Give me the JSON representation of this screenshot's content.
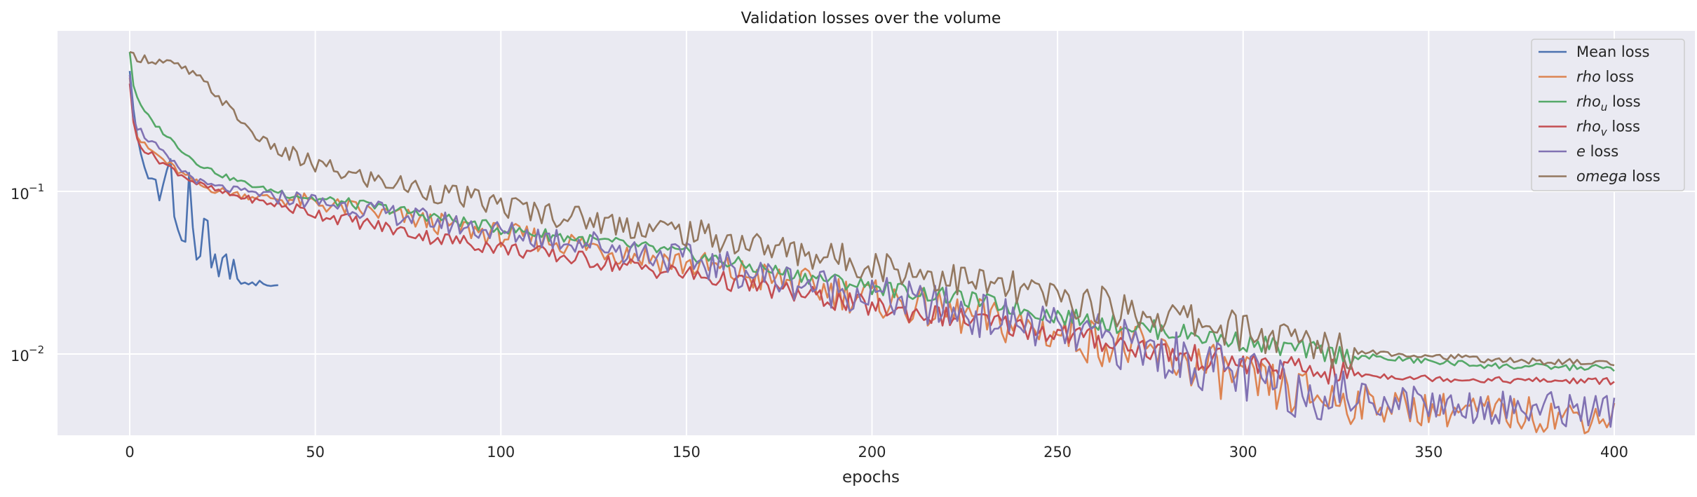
{
  "chart_data": {
    "type": "line",
    "title": "Validation losses over the volume",
    "xlabel": "epochs",
    "ylabel": "",
    "xlim": [
      -19,
      419
    ],
    "yscale": "log",
    "ylim": [
      0.0031,
      0.82
    ],
    "xticks": [
      0,
      50,
      100,
      150,
      200,
      250,
      300,
      350,
      400
    ],
    "xtick_labels": [
      "0",
      "50",
      "100",
      "150",
      "200",
      "250",
      "300",
      "350",
      "400"
    ],
    "yticks": [
      0.1,
      0.01
    ],
    "grid": true,
    "legend_position": "top-right",
    "background": "#eaeaf2",
    "series": [
      {
        "name": "Mean loss",
        "legend": {
          "main": "Mean loss",
          "sub": "",
          "suffix": "",
          "italic": false
        },
        "color": "#4c72b0",
        "x": [
          0,
          1,
          2,
          3,
          4,
          5,
          6,
          7,
          8,
          9,
          10,
          11,
          12,
          13,
          14,
          15,
          16,
          17,
          18,
          19,
          20,
          21,
          22,
          23,
          24,
          25,
          26,
          27,
          28,
          29,
          30,
          31,
          32,
          33,
          34,
          35,
          36,
          37,
          38,
          39,
          40
        ],
        "y": [
          0.55,
          0.32,
          0.22,
          0.17,
          0.14,
          0.12,
          0.12,
          0.118,
          0.088,
          0.11,
          0.135,
          0.158,
          0.07,
          0.058,
          0.05,
          0.049,
          0.13,
          0.06,
          0.038,
          0.04,
          0.068,
          0.066,
          0.034,
          0.041,
          0.03,
          0.039,
          0.041,
          0.029,
          0.038,
          0.029,
          0.027,
          0.0275,
          0.0268,
          0.0276,
          0.0264,
          0.0282,
          0.027,
          0.0264,
          0.0262,
          0.0264,
          0.0265
        ]
      },
      {
        "name": "rho loss",
        "legend": {
          "main": "rho",
          "sub": "",
          "suffix": " loss",
          "italic": true
        },
        "color": "#dd8452",
        "points": [
          [
            0,
            0.5
          ],
          [
            1,
            0.28
          ],
          [
            2,
            0.22
          ],
          [
            4,
            0.19
          ],
          [
            7,
            0.17
          ],
          [
            10,
            0.15
          ],
          [
            14,
            0.128
          ],
          [
            20,
            0.106
          ],
          [
            30,
            0.095
          ],
          [
            45,
            0.088
          ],
          [
            60,
            0.078
          ],
          [
            80,
            0.065
          ],
          [
            100,
            0.054
          ],
          [
            120,
            0.048
          ],
          [
            150,
            0.036
          ],
          [
            175,
            0.028
          ],
          [
            200,
            0.022
          ],
          [
            225,
            0.017
          ],
          [
            250,
            0.0135
          ],
          [
            270,
            0.0108
          ],
          [
            290,
            0.0082
          ],
          [
            300,
            0.0068
          ],
          [
            312,
            0.0058
          ],
          [
            330,
            0.0051
          ],
          [
            350,
            0.0046
          ],
          [
            370,
            0.0043
          ],
          [
            400,
            0.0041
          ]
        ],
        "wiggle": [
          0.05,
          0.16,
          0.11
        ]
      },
      {
        "name": "rho_u loss",
        "legend": {
          "main": "rho",
          "sub": "u",
          "suffix": " loss",
          "italic": true
        },
        "color": "#55a868",
        "points": [
          [
            0,
            0.72
          ],
          [
            1,
            0.45
          ],
          [
            3,
            0.33
          ],
          [
            6,
            0.27
          ],
          [
            10,
            0.22
          ],
          [
            14,
            0.18
          ],
          [
            18,
            0.15
          ],
          [
            25,
            0.125
          ],
          [
            35,
            0.105
          ],
          [
            50,
            0.09
          ],
          [
            70,
            0.078
          ],
          [
            100,
            0.059
          ],
          [
            130,
            0.048
          ],
          [
            150,
            0.041
          ],
          [
            175,
            0.032
          ],
          [
            200,
            0.026
          ],
          [
            230,
            0.021
          ],
          [
            250,
            0.0172
          ],
          [
            270,
            0.0148
          ],
          [
            290,
            0.0128
          ],
          [
            310,
            0.011
          ],
          [
            330,
            0.0097
          ],
          [
            350,
            0.009
          ],
          [
            370,
            0.0084
          ],
          [
            400,
            0.0082
          ]
        ],
        "wiggle": [
          0.03,
          0.06,
          0.02
        ]
      },
      {
        "name": "rho_v loss",
        "legend": {
          "main": "rho",
          "sub": "v",
          "suffix": " loss",
          "italic": true
        },
        "color": "#c44e52",
        "points": [
          [
            0,
            0.46
          ],
          [
            1,
            0.26
          ],
          [
            2,
            0.21
          ],
          [
            4,
            0.18
          ],
          [
            8,
            0.155
          ],
          [
            12,
            0.135
          ],
          [
            18,
            0.112
          ],
          [
            25,
            0.098
          ],
          [
            40,
            0.082
          ],
          [
            60,
            0.066
          ],
          [
            80,
            0.053
          ],
          [
            100,
            0.045
          ],
          [
            130,
            0.036
          ],
          [
            150,
            0.031
          ],
          [
            175,
            0.0245
          ],
          [
            200,
            0.0195
          ],
          [
            230,
            0.0158
          ],
          [
            250,
            0.0135
          ],
          [
            270,
            0.0112
          ],
          [
            290,
            0.0093
          ],
          [
            310,
            0.0082
          ],
          [
            330,
            0.0075
          ],
          [
            350,
            0.0071
          ],
          [
            370,
            0.0069
          ],
          [
            400,
            0.0068
          ]
        ],
        "wiggle": [
          0.04,
          0.08,
          0.02
        ]
      },
      {
        "name": "e loss",
        "legend": {
          "main": "e",
          "sub": "",
          "suffix": " loss",
          "italic": true
        },
        "color": "#8172b3",
        "points": [
          [
            0,
            0.52
          ],
          [
            1,
            0.3
          ],
          [
            2,
            0.25
          ],
          [
            4,
            0.22
          ],
          [
            7,
            0.19
          ],
          [
            10,
            0.16
          ],
          [
            14,
            0.135
          ],
          [
            20,
            0.11
          ],
          [
            30,
            0.1
          ],
          [
            45,
            0.09
          ],
          [
            60,
            0.08
          ],
          [
            80,
            0.067
          ],
          [
            100,
            0.056
          ],
          [
            120,
            0.05
          ],
          [
            150,
            0.038
          ],
          [
            175,
            0.029
          ],
          [
            200,
            0.023
          ],
          [
            225,
            0.018
          ],
          [
            250,
            0.014
          ],
          [
            270,
            0.0112
          ],
          [
            290,
            0.0086
          ],
          [
            300,
            0.0072
          ],
          [
            312,
            0.0061
          ],
          [
            330,
            0.0055
          ],
          [
            350,
            0.005
          ],
          [
            370,
            0.0047
          ],
          [
            400,
            0.0045
          ]
        ],
        "wiggle": [
          0.05,
          0.17,
          0.11
        ]
      },
      {
        "name": "omega loss",
        "legend": {
          "main": "omega",
          "sub": "",
          "suffix": " loss",
          "italic": true
        },
        "color": "#937860",
        "points": [
          [
            0,
            0.72
          ],
          [
            1,
            0.68
          ],
          [
            5,
            0.65
          ],
          [
            10,
            0.62
          ],
          [
            15,
            0.56
          ],
          [
            20,
            0.47
          ],
          [
            25,
            0.36
          ],
          [
            30,
            0.27
          ],
          [
            35,
            0.21
          ],
          [
            40,
            0.18
          ],
          [
            45,
            0.16
          ],
          [
            50,
            0.145
          ],
          [
            60,
            0.125
          ],
          [
            80,
            0.102
          ],
          [
            100,
            0.082
          ],
          [
            130,
            0.064
          ],
          [
            150,
            0.056
          ],
          [
            175,
            0.044
          ],
          [
            200,
            0.036
          ],
          [
            230,
            0.027
          ],
          [
            250,
            0.022
          ],
          [
            270,
            0.0185
          ],
          [
            290,
            0.0155
          ],
          [
            310,
            0.0123
          ],
          [
            330,
            0.0105
          ],
          [
            350,
            0.0098
          ],
          [
            370,
            0.0091
          ],
          [
            400,
            0.0088
          ]
        ],
        "wiggle": [
          0.06,
          0.13,
          0.02
        ]
      }
    ]
  }
}
